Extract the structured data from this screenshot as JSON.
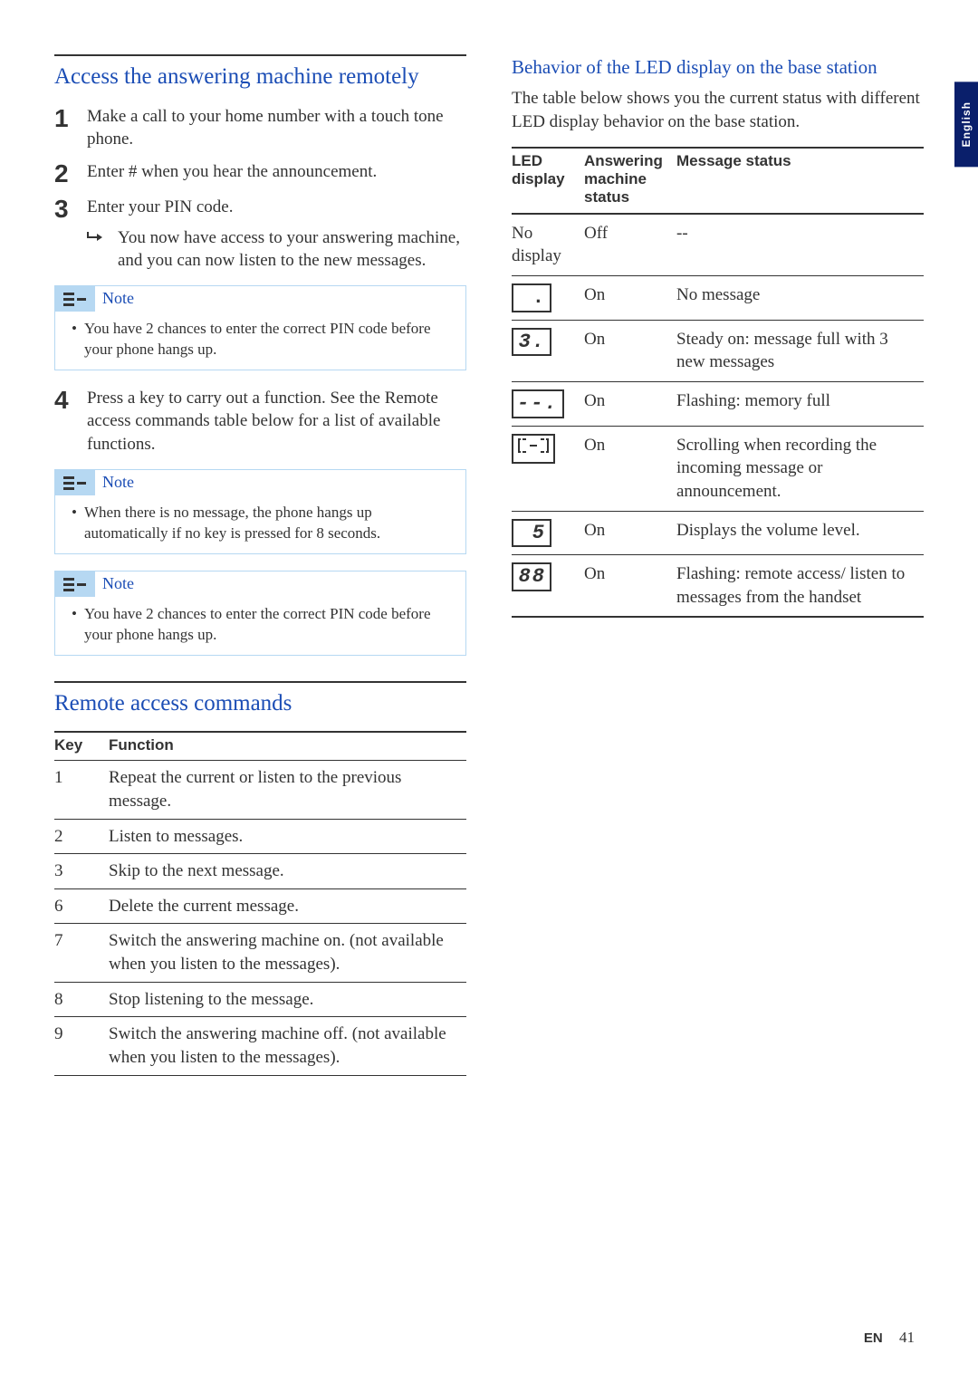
{
  "lang_tab": "English",
  "left": {
    "heading1": "Access the answering machine remotely",
    "steps": [
      {
        "num": "1",
        "text": "Make a call to your home number with a touch tone phone."
      },
      {
        "num": "2",
        "text": "Enter # when you hear the announcement."
      },
      {
        "num": "3",
        "text": "Enter your PIN code.",
        "sub": "You now have access to your answering machine, and you can now listen to the new messages."
      },
      {
        "num": "4",
        "text": "Press a key to carry out a function. See the Remote access commands table below for a list of available functions."
      }
    ],
    "note1_title": "Note",
    "note1_text": "You have 2 chances to enter the correct PIN code before your phone hangs up.",
    "note2_title": "Note",
    "note2_text": "When there is no message, the phone hangs up automatically if no key is pressed for 8 seconds.",
    "heading2": "Remote access commands",
    "cmd_header_key": "Key",
    "cmd_header_fn": "Function",
    "commands": [
      {
        "k": "1",
        "f": "Repeat the current or listen to the previous message."
      },
      {
        "k": "2",
        "f": "Listen to messages."
      },
      {
        "k": "3",
        "f": "Skip to the next message."
      },
      {
        "k": "6",
        "f": "Delete the current message."
      },
      {
        "k": "7",
        "f": "Switch the answering machine on. (not available when you listen to the messages)."
      },
      {
        "k": "8",
        "f": "Stop listening to the message."
      },
      {
        "k": "9",
        "f": "Switch the answering machine off. (not available when you listen to the messages)."
      }
    ]
  },
  "right": {
    "heading3": "Behavior of the LED display on the base station",
    "intro": "The table below shows you the current status with different LED display behavior on the base station.",
    "led_header_disp": "LED display",
    "led_header_ans": "Answering machine status",
    "led_header_msg": "Message status",
    "rows": [
      {
        "disp_type": "text",
        "disp": "No display",
        "ans": "Off",
        "msg": "--"
      },
      {
        "disp_type": "lcd_dot",
        "disp": ".",
        "ans": "On",
        "msg": "No message"
      },
      {
        "disp_type": "lcd",
        "disp": "3.",
        "ans": "On",
        "msg": "Steady on: message full with 3 new messages"
      },
      {
        "disp_type": "lcd",
        "disp": "--.",
        "ans": "On",
        "msg": "Flashing: memory full"
      },
      {
        "disp_type": "lcd_scroll",
        "disp": "",
        "ans": "On",
        "msg": "Scrolling when recording the incoming message or announcement."
      },
      {
        "disp_type": "lcd",
        "disp": "5",
        "ans": "On",
        "msg": "Displays the volume level."
      },
      {
        "disp_type": "lcd",
        "disp": "88",
        "ans": "On",
        "msg": "Flashing: remote access/ listen to messages from the handset"
      }
    ]
  },
  "footer": {
    "lang": "EN",
    "pagenum": "41"
  }
}
